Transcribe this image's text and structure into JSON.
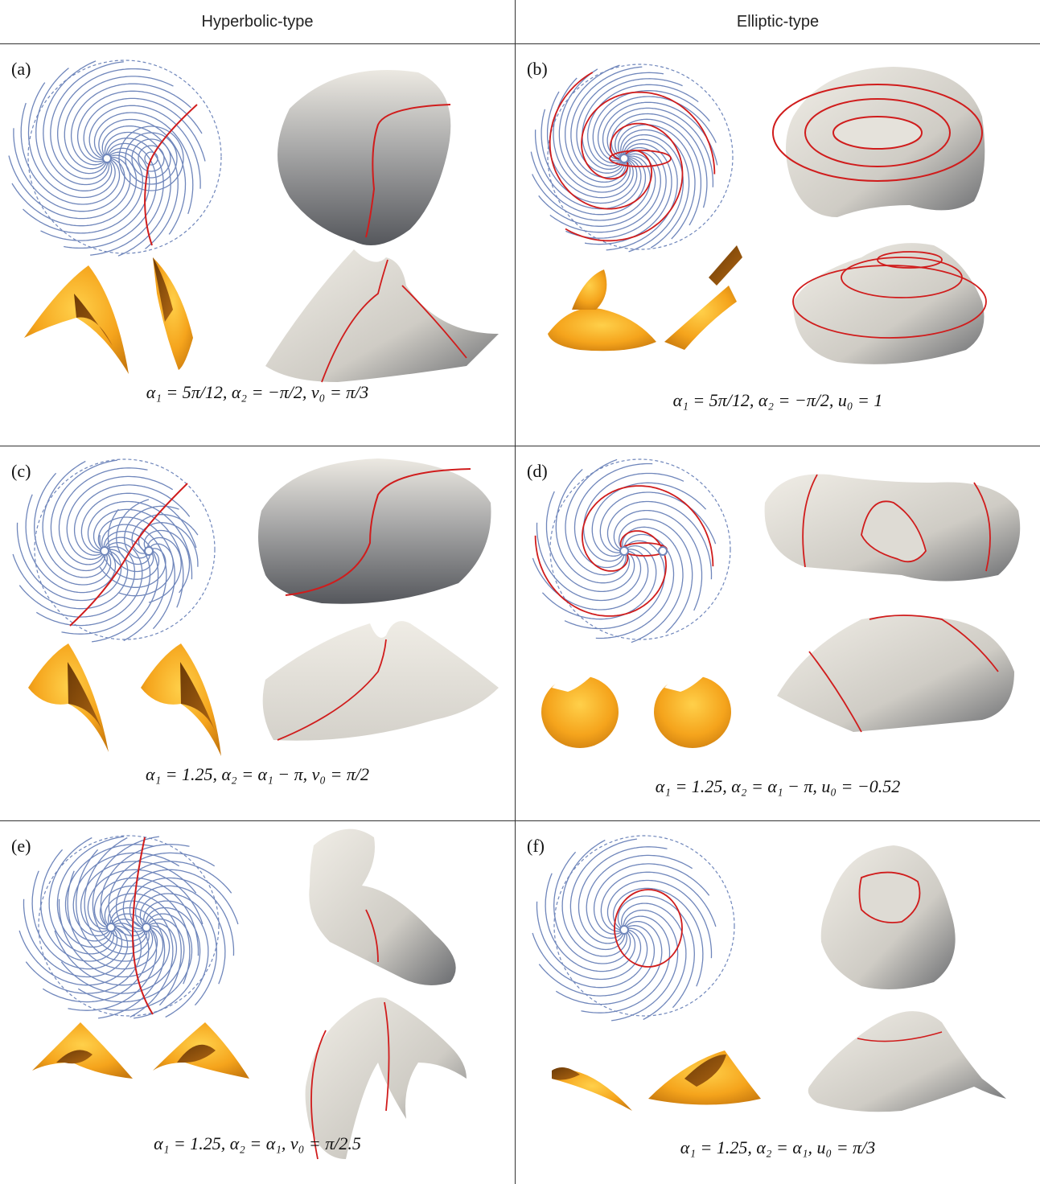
{
  "columns": [
    "Hyperbolic-type",
    "Elliptic-type"
  ],
  "colors": {
    "spiral": "#6f86bb",
    "curve": "#d01c1c",
    "orange": "#f2a01e",
    "surface": "#e8e5dd",
    "shadow": "#5b5d62"
  },
  "panels": [
    {
      "label": "(a)",
      "formula": "α₁ = 5π/12, α₂ = −π/2, v₀ = π/3"
    },
    {
      "label": "(b)",
      "formula": "α₁ = 5π/12, α₂ = −π/2, u₀ = 1"
    },
    {
      "label": "(c)",
      "formula": "α₁ = 1.25, α₂ = α₁ − π, v₀ = π/2"
    },
    {
      "label": "(d)",
      "formula": "α₁ = 1.25, α₂ = α₁ − π, u₀ = −0.52"
    },
    {
      "label": "(e)",
      "formula": "α₁ = 1.25, α₂ = α₁, v₀ = π/2.5"
    },
    {
      "label": "(f)",
      "formula": "α₁ = 1.25, α₂ = α₁, u₀ = π/3"
    }
  ]
}
